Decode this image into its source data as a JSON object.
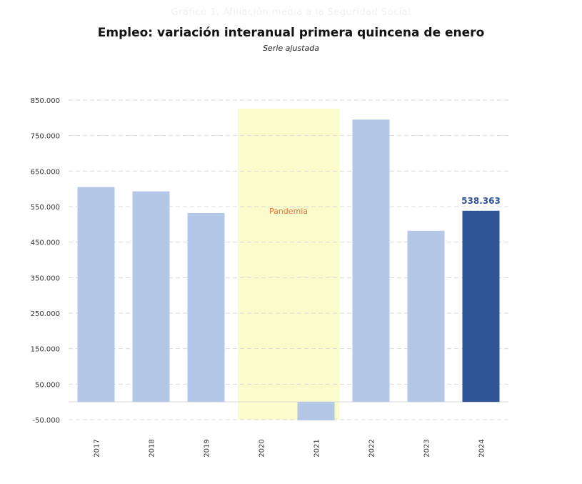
{
  "header": {
    "ghost": "Gráfico 1. Afiliación media a la Seguridad Social",
    "title": "Empleo: variación interanual primera quincena de enero",
    "subtitle": "Serie ajustada"
  },
  "colors": {
    "bar": "#b4c7e7",
    "highlight": "#2f5597",
    "band": "#fafccb",
    "grid": "#d9d9d9",
    "annotation": "#e8703a"
  },
  "chart_data": {
    "type": "bar",
    "categories": [
      "2017",
      "2018",
      "2019",
      "2020",
      "2021",
      "2022",
      "2023",
      "2024"
    ],
    "values": [
      605000,
      593000,
      532000,
      null,
      -52000,
      795000,
      482000,
      538363
    ],
    "ylim": [
      -50000,
      850000
    ],
    "yticks": [
      "-50.000",
      "50.000",
      "150.000",
      "250.000",
      "350.000",
      "450.000",
      "550.000",
      "650.000",
      "750.000",
      "850.000"
    ],
    "ytick_values": [
      -50000,
      50000,
      150000,
      250000,
      350000,
      450000,
      550000,
      650000,
      750000,
      850000
    ],
    "grid": true,
    "highlight_index": 7,
    "highlight_label": "538.363",
    "annotation": {
      "text": "Pandemia",
      "span": [
        "2020",
        "2021"
      ]
    }
  }
}
